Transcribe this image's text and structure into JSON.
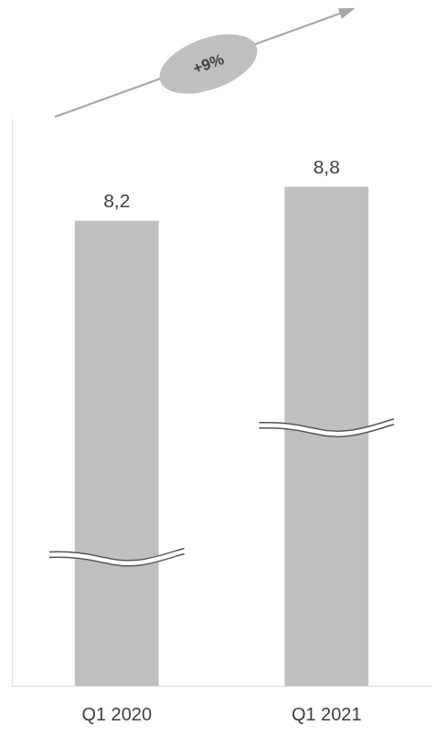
{
  "chart_data": {
    "type": "bar",
    "annotation": "+9%",
    "categories": [
      "Q1 2020",
      "Q1 2021"
    ],
    "values": [
      8.2,
      8.8
    ],
    "value_labels": [
      "8,2",
      "8,8"
    ],
    "color": "#bfbfbf",
    "ylim": [
      0,
      10
    ],
    "grid": false,
    "data_labels": true,
    "tick_labels": "x"
  }
}
